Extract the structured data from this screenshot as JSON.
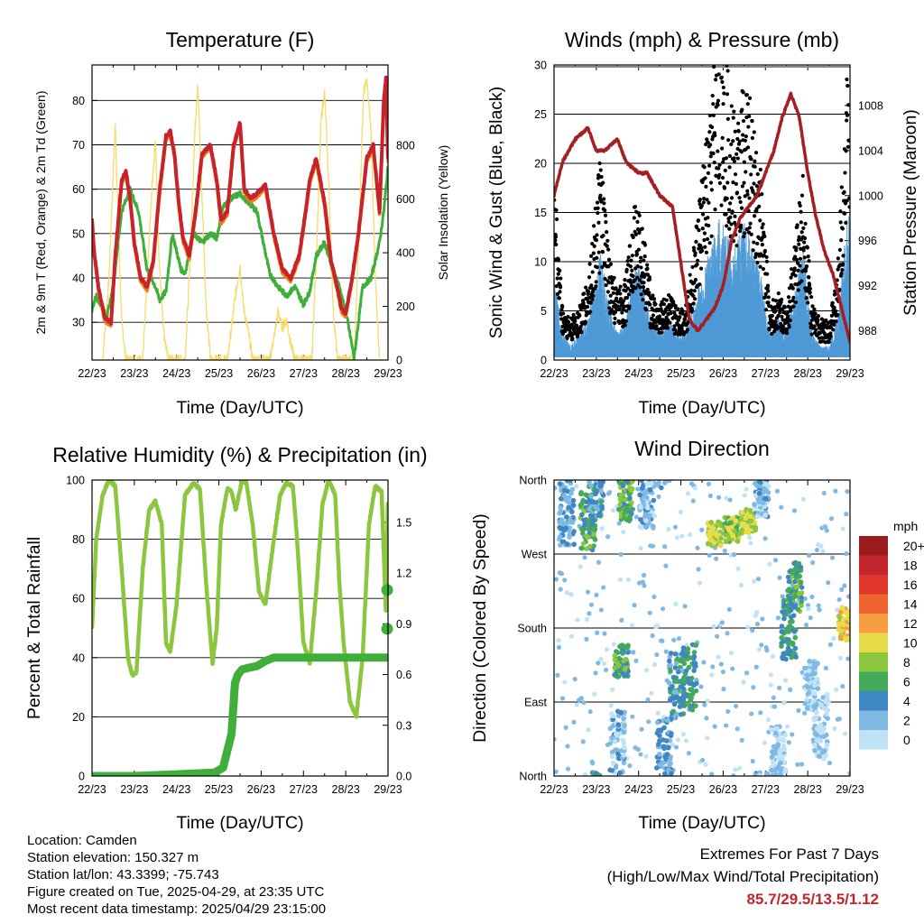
{
  "colors": {
    "red": "#c8222a",
    "orange": "#e8801e",
    "green": "#3fae3a",
    "light_green": "#8cc63f",
    "yellow": "#f6dc6a",
    "blue": "#4f9ad6",
    "black": "#000000",
    "maroon": "#a51e22",
    "extremes": "#c0262c"
  },
  "footer": {
    "location": "Location: Camden",
    "elevation": "Station elevation: 150.327 m",
    "latlon": "Station lat/lon: 43.3399; -75.743",
    "created": "Figure created on Tue, 2025-04-29, at 23:35 UTC",
    "recent": "Most recent data timestamp: 2025/04/29 23:15:00",
    "extremes_title": "Extremes For Past 7 Days",
    "extremes_sub": "(High/Low/Max Wind/Total Precipitation)",
    "extremes_values": "85.7/29.5/13.5/1.12"
  },
  "chart_data": [
    {
      "type": "line",
      "title": "Temperature (F)",
      "xlabel": "Time (Day/UTC)",
      "ylabel": "2m & 9m T (Red, Orange) & 2m Td (Green)",
      "ylabel_right": "Solar Insolation (Yellow)",
      "x_ticks": [
        "22/23",
        "23/23",
        "24/23",
        "25/23",
        "26/23",
        "27/23",
        "28/23",
        "29/23"
      ],
      "xlim": [
        0,
        7
      ],
      "ylim": [
        21.5,
        88
      ],
      "y_ticks": [
        30,
        40,
        50,
        60,
        70,
        80
      ],
      "ylim_right": [
        0,
        1100
      ],
      "y_ticks_right": [
        0,
        200,
        400,
        600,
        800
      ],
      "grid": true,
      "series": [
        {
          "key": "temp",
          "x": [
            0,
            0.05,
            0.15,
            0.3,
            0.45,
            0.55,
            0.7,
            0.8,
            0.9,
            1.0,
            1.15,
            1.3,
            1.45,
            1.6,
            1.75,
            1.85,
            1.95,
            2.05,
            2.15,
            2.3,
            2.45,
            2.6,
            2.8,
            2.95,
            3.05,
            3.2,
            3.35,
            3.5,
            3.6,
            3.75,
            3.9,
            4.0,
            4.1,
            4.3,
            4.5,
            4.7,
            4.9,
            5.05,
            5.15,
            5.3,
            5.5,
            5.65,
            5.8,
            5.9,
            6.0,
            6.15,
            6.3,
            6.5,
            6.65,
            6.8,
            6.9,
            6.95,
            7.0
          ],
          "y": [
            53,
            46,
            38,
            31,
            30,
            45,
            62,
            64,
            58,
            48,
            40,
            38,
            44,
            60,
            72,
            73,
            68,
            57,
            49,
            45,
            55,
            68,
            70,
            62,
            53,
            55,
            70,
            75,
            60,
            58,
            59,
            60,
            61,
            50,
            42,
            40,
            45,
            55,
            62,
            67,
            57,
            44,
            38,
            33,
            32,
            40,
            50,
            67,
            70,
            55,
            80,
            85,
            67
          ]
        },
        {
          "key": "dewpoint",
          "x": [
            0,
            0.1,
            0.2,
            0.35,
            0.5,
            0.7,
            0.9,
            1.1,
            1.3,
            1.5,
            1.6,
            1.75,
            1.9,
            2.1,
            2.2,
            2.4,
            2.6,
            2.8,
            2.95,
            3.1,
            3.3,
            3.5,
            3.7,
            3.9,
            4.05,
            4.2,
            4.4,
            4.6,
            4.8,
            5.0,
            5.15,
            5.3,
            5.5,
            5.7,
            5.85,
            5.95,
            6.05,
            6.2,
            6.4,
            6.6,
            6.8,
            6.9,
            7.0
          ],
          "y": [
            33,
            36,
            34,
            31,
            38,
            55,
            60,
            55,
            42,
            38,
            35,
            37,
            50,
            42,
            41,
            50,
            48,
            50,
            49,
            56,
            58,
            59,
            57,
            55,
            48,
            41,
            38,
            36,
            38,
            34,
            37,
            45,
            48,
            42,
            38,
            34,
            30,
            22,
            38,
            40,
            48,
            55,
            65
          ]
        },
        {
          "key": "solar",
          "x": [
            0.25,
            0.4,
            0.5,
            0.55,
            0.62,
            0.7,
            0.8,
            1.2,
            1.32,
            1.42,
            1.5,
            1.58,
            1.7,
            1.8,
            2.2,
            2.33,
            2.43,
            2.5,
            2.58,
            2.7,
            2.8,
            3.2,
            3.32,
            3.4,
            3.5,
            3.58,
            3.7,
            3.8,
            4.2,
            4.3,
            4.4,
            4.5,
            4.6,
            4.7,
            4.8,
            5.2,
            5.32,
            5.42,
            5.5,
            5.6,
            5.7,
            5.8,
            6.2,
            6.32,
            6.42,
            6.5,
            6.6,
            6.7,
            6.8
          ],
          "y": [
            0,
            300,
            700,
            870,
            500,
            150,
            0,
            0,
            350,
            650,
            830,
            400,
            100,
            0,
            0,
            400,
            850,
            1030,
            700,
            200,
            0,
            0,
            150,
            250,
            350,
            200,
            100,
            0,
            0,
            80,
            180,
            120,
            150,
            60,
            0,
            0,
            450,
            900,
            1000,
            650,
            200,
            0,
            0,
            500,
            1000,
            1040,
            850,
            300,
            0
          ]
        }
      ]
    },
    {
      "type": "scatter",
      "title": "Winds (mph) & Pressure (mb)",
      "xlabel": "Time (Day/UTC)",
      "ylabel": "Sonic Wind & Gust (Blue, Black)",
      "ylabel_right": "Station Pressure (Maroon)",
      "x_ticks": [
        "22/23",
        "23/23",
        "24/23",
        "25/23",
        "26/23",
        "27/23",
        "28/23",
        "29/23"
      ],
      "xlim": [
        0,
        7
      ],
      "ylim": [
        0,
        30
      ],
      "y_ticks": [
        0,
        5,
        10,
        15,
        20,
        25,
        30
      ],
      "ylim_right": [
        985.4,
        1011.6
      ],
      "y_ticks_right": [
        988,
        992,
        996,
        1000,
        1004,
        1008
      ],
      "grid": true,
      "series": [
        {
          "key": "wind",
          "x": [
            0,
            0.2,
            0.4,
            0.6,
            0.8,
            1.0,
            1.1,
            1.3,
            1.5,
            1.7,
            1.9,
            2.1,
            2.3,
            2.5,
            2.7,
            2.9,
            3.1,
            3.3,
            3.5,
            3.7,
            3.9,
            4.1,
            4.3,
            4.5,
            4.7,
            4.9,
            5.1,
            5.3,
            5.5,
            5.7,
            5.9,
            6.1,
            6.3,
            6.5,
            6.7,
            6.9,
            7.0
          ],
          "y": [
            6,
            2,
            1,
            2,
            3,
            6,
            8,
            4,
            2,
            3,
            7,
            6,
            3,
            2,
            3,
            2,
            2,
            4,
            6,
            8,
            10,
            9,
            8,
            10,
            8,
            6,
            2,
            3,
            2,
            5,
            8,
            2,
            1,
            1,
            3,
            9,
            12
          ]
        },
        {
          "key": "gust",
          "x": [
            0,
            0.2,
            0.4,
            0.6,
            0.8,
            1.0,
            1.1,
            1.3,
            1.5,
            1.7,
            1.9,
            2.1,
            2.3,
            2.5,
            2.7,
            2.9,
            3.1,
            3.3,
            3.5,
            3.7,
            3.9,
            4.1,
            4.3,
            4.5,
            4.7,
            4.9,
            5.1,
            5.3,
            5.5,
            5.7,
            5.9,
            6.1,
            6.3,
            6.5,
            6.7,
            6.9,
            7.0
          ],
          "y": [
            14,
            4,
            3,
            4,
            6,
            12,
            15,
            8,
            5,
            6,
            12,
            10,
            5,
            4,
            5,
            4,
            4,
            8,
            14,
            18,
            28,
            22,
            17,
            21,
            18,
            14,
            4,
            5,
            4,
            9,
            14,
            4,
            3,
            3,
            6,
            20,
            26
          ]
        },
        {
          "key": "pressure",
          "x": [
            0,
            0.2,
            0.5,
            0.8,
            1.0,
            1.2,
            1.5,
            1.7,
            2.0,
            2.2,
            2.5,
            2.8,
            3.0,
            3.2,
            3.4,
            3.6,
            3.8,
            4.0,
            4.2,
            4.4,
            4.6,
            4.8,
            5.0,
            5.2,
            5.4,
            5.6,
            5.8,
            6.0,
            6.2,
            6.4,
            6.6,
            6.8,
            7.0
          ],
          "y": [
            1000,
            1003,
            1005,
            1006,
            1004,
            1004,
            1005,
            1003,
            1002,
            1002,
            1000,
            999,
            994,
            989,
            988,
            989,
            990,
            992,
            996,
            998,
            999,
            1000,
            1002,
            1004,
            1007,
            1009,
            1007,
            1002,
            998,
            995,
            993,
            990,
            987
          ]
        }
      ]
    },
    {
      "type": "line",
      "title": "Relative Humidity (%) & Precipitation (in)",
      "xlabel": "Time (Day/UTC)",
      "ylabel": "Percent & Total Rainfall",
      "x_ticks": [
        "22/23",
        "23/23",
        "24/23",
        "25/23",
        "26/23",
        "27/23",
        "28/23",
        "29/23"
      ],
      "xlim": [
        0,
        7
      ],
      "ylim": [
        0,
        100
      ],
      "y_ticks": [
        0,
        20,
        40,
        60,
        80,
        100
      ],
      "ylim_right": [
        0,
        1.75
      ],
      "y_ticks_right": [
        "0.0",
        "0.3",
        "0.6",
        "0.9",
        "1.2",
        "1.5"
      ],
      "y_ticks_right_values": [
        0,
        0.3,
        0.6,
        0.9,
        1.2,
        1.5
      ],
      "grid": true,
      "series": [
        {
          "key": "rh",
          "x": [
            0,
            0.1,
            0.25,
            0.4,
            0.55,
            0.7,
            0.85,
            0.95,
            1.05,
            1.2,
            1.35,
            1.5,
            1.65,
            1.75,
            1.85,
            2.0,
            2.2,
            2.4,
            2.55,
            2.7,
            2.85,
            2.95,
            3.05,
            3.2,
            3.3,
            3.4,
            3.55,
            3.65,
            3.8,
            3.95,
            4.1,
            4.3,
            4.45,
            4.6,
            4.75,
            4.85,
            5.0,
            5.15,
            5.3,
            5.45,
            5.6,
            5.75,
            5.85,
            5.95,
            6.1,
            6.25,
            6.4,
            6.55,
            6.7,
            6.85,
            6.95,
            7.0
          ],
          "y": [
            50,
            80,
            95,
            100,
            98,
            70,
            40,
            34,
            35,
            70,
            90,
            93,
            85,
            45,
            42,
            58,
            95,
            99,
            97,
            65,
            38,
            50,
            85,
            97,
            96,
            90,
            100,
            99,
            85,
            62,
            58,
            80,
            95,
            99,
            98,
            80,
            45,
            38,
            62,
            92,
            100,
            95,
            65,
            45,
            25,
            20,
            40,
            85,
            98,
            96,
            55,
            95
          ]
        },
        {
          "key": "precip",
          "x": [
            0,
            1,
            2,
            2.9,
            3.1,
            3.3,
            3.38,
            3.45,
            3.55,
            3.7,
            3.9,
            4.1,
            4.3,
            5,
            6,
            7
          ],
          "y": [
            0,
            0,
            0.01,
            0.02,
            0.05,
            0.25,
            0.55,
            0.6,
            0.63,
            0.64,
            0.65,
            0.68,
            0.7,
            0.7,
            0.7,
            0.7
          ]
        },
        {
          "key": "precip_end",
          "x": [
            6.98,
            6.98
          ],
          "y": [
            0.87,
            1.1
          ]
        }
      ]
    },
    {
      "type": "scatter",
      "title": "Wind Direction",
      "xlabel": "Time (Day/UTC)",
      "ylabel": "Direction (Colored By Speed)",
      "x_ticks": [
        "22/23",
        "23/23",
        "24/23",
        "25/23",
        "26/23",
        "27/23",
        "28/23",
        "29/23"
      ],
      "xlim": [
        0,
        7
      ],
      "ylim": [
        0,
        360
      ],
      "y_ticks": [
        "North",
        "East",
        "South",
        "West",
        "North"
      ],
      "y_tick_values": [
        0,
        90,
        180,
        270,
        360
      ],
      "grid": true,
      "colorbar": {
        "title": "mph",
        "labels": [
          "20+",
          "18",
          "16",
          "14",
          "12",
          "10",
          "8",
          "6",
          "4",
          "2",
          "0"
        ],
        "colors": [
          "#9b1b1e",
          "#c1272d",
          "#e2362d",
          "#f0642f",
          "#f79d42",
          "#e8dc4a",
          "#8cc63f",
          "#43a95b",
          "#3f86c4",
          "#7fb9e4",
          "#bfe2f6"
        ]
      },
      "series": [
        {
          "key": "dir",
          "clusters": [
            {
              "x": 0.3,
              "dir": 320,
              "spread": 40,
              "spd": 3
            },
            {
              "x": 0.8,
              "dir": 310,
              "spread": 35,
              "spd": 6
            },
            {
              "x": 1.0,
              "dir": 340,
              "spread": 25,
              "spd": 4
            },
            {
              "x": 1.7,
              "dir": 335,
              "spread": 25,
              "spd": 6
            },
            {
              "x": 1.6,
              "dir": 140,
              "spread": 20,
              "spd": 6
            },
            {
              "x": 1.5,
              "dir": 40,
              "spread": 40,
              "spd": 2
            },
            {
              "x": 2.2,
              "dir": 330,
              "spread": 30,
              "spd": 2
            },
            {
              "x": 2.9,
              "dir": 110,
              "spread": 40,
              "spd": 4
            },
            {
              "x": 3.2,
              "dir": 120,
              "spread": 40,
              "spd": 5
            },
            {
              "x": 2.6,
              "dir": 30,
              "spread": 40,
              "spd": 3
            },
            {
              "x": 3.8,
              "dir": 295,
              "spread": 15,
              "spd": 9
            },
            {
              "x": 4.2,
              "dir": 300,
              "spread": 15,
              "spd": 8
            },
            {
              "x": 4.6,
              "dir": 310,
              "spread": 15,
              "spd": 9
            },
            {
              "x": 4.9,
              "dir": 340,
              "spread": 25,
              "spd": 2
            },
            {
              "x": 5.55,
              "dir": 180,
              "spread": 40,
              "spd": 5
            },
            {
              "x": 5.7,
              "dir": 230,
              "spread": 30,
              "spd": 6
            },
            {
              "x": 5.3,
              "dir": 30,
              "spread": 30,
              "spd": 1
            },
            {
              "x": 6.1,
              "dir": 110,
              "spread": 30,
              "spd": 1
            },
            {
              "x": 6.3,
              "dir": 60,
              "spread": 40,
              "spd": 1
            },
            {
              "x": 6.9,
              "dir": 185,
              "spread": 20,
              "spd": 10
            }
          ]
        }
      ]
    }
  ]
}
